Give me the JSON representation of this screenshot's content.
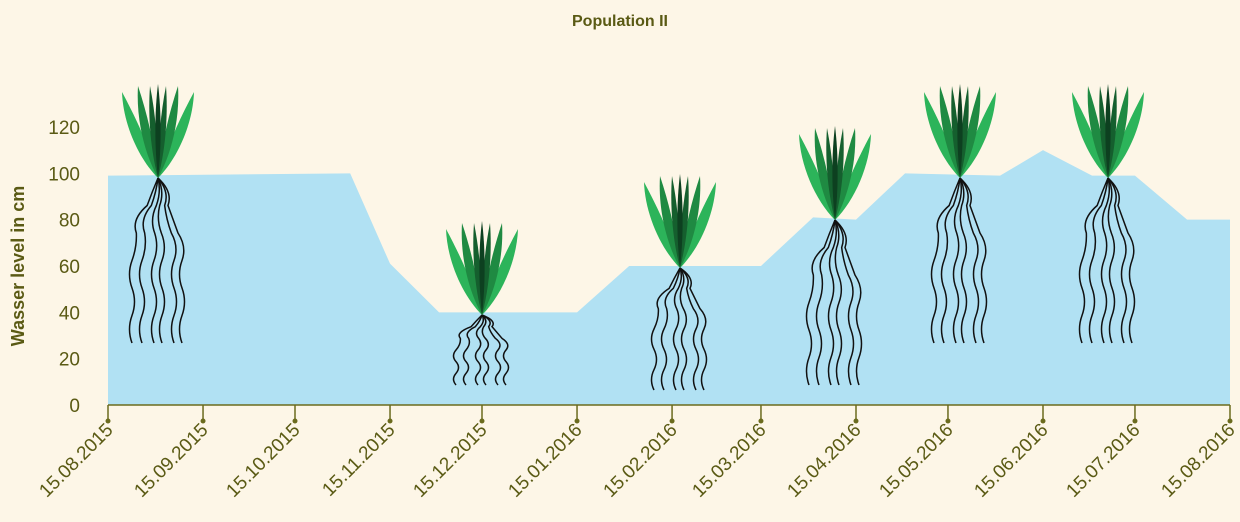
{
  "chart_data": {
    "type": "area",
    "title": "Population II",
    "y_label": "Wasser level in cm",
    "x": [
      "15.08.2015",
      "02.11.2015",
      "15.11.2015",
      "01.12.2015",
      "15.01.2016",
      "01.02.2016",
      "15.03.2016",
      "01.04.2016",
      "15.04.2016",
      "01.05.2016",
      "01.06.2016",
      "15.06.2016",
      "01.07.2016",
      "15.07.2016",
      "01.08.2016",
      "15.08.2016"
    ],
    "values": [
      99,
      100,
      61,
      40,
      40,
      60,
      60,
      81,
      80,
      100,
      99,
      110,
      99,
      99,
      80,
      80
    ],
    "color": "#b1e1f3",
    "xlim": [
      "15.08.2015",
      "15.08.2016"
    ],
    "xticks": [
      "15.08.2015",
      "15.09.2015",
      "15.10.2015",
      "15.11.2015",
      "15.12.2015",
      "15.01.2016",
      "15.02.2016",
      "15.03.2016",
      "15.04.2016",
      "15.05.2016",
      "15.06.2016",
      "15.07.2016",
      "15.08.2016"
    ],
    "ylim": [
      0,
      120
    ],
    "yticks": [
      0,
      20,
      40,
      60,
      80,
      100,
      120
    ],
    "grid": false
  }
}
